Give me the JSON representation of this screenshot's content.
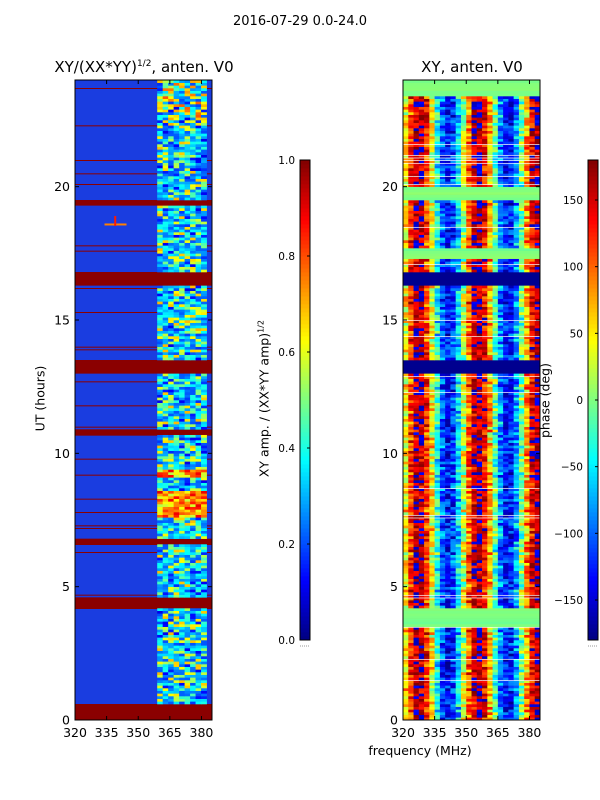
{
  "suptitle": "2016-07-29 0.0-24.0",
  "xlabel": "frequency (MHz)",
  "colors": {
    "band_color": "#8b0000",
    "background_low": "#00008f",
    "panel_left_base": "#1a3de0"
  },
  "chart_data": [
    {
      "type": "heatmap",
      "title_prefix": "XY/(XX*YY)",
      "title_exponent": "1/2",
      "title_suffix": ", anten. V0",
      "ylabel": "UT (hours)",
      "xlim": [
        320,
        385
      ],
      "ylim": [
        0,
        24
      ],
      "xticks": [
        320,
        335,
        350,
        365,
        380
      ],
      "yticks": [
        0,
        5,
        10,
        15,
        20
      ],
      "saturated_bands_hours": [
        [
          0.0,
          0.6
        ],
        [
          4.2,
          4.6
        ],
        [
          6.6,
          6.75
        ],
        [
          10.7,
          10.9
        ],
        [
          12.95,
          13.45
        ],
        [
          16.3,
          16.8
        ],
        [
          19.25,
          19.5
        ]
      ],
      "active_columns_mhz": [
        359,
        382
      ],
      "colorbar": {
        "label_prefix": "XY amp. / (XX*YY amp)",
        "label_exponent": "1/2",
        "range": [
          0.0,
          1.0
        ],
        "ticks": [
          "0.0",
          "0.2",
          "0.4",
          "0.6",
          "0.8",
          "1.0"
        ],
        "colormap": "jet"
      }
    },
    {
      "type": "heatmap",
      "title": "XY, anten. V0",
      "xlim": [
        320,
        385
      ],
      "ylim": [
        0,
        24
      ],
      "xticks": [
        320,
        335,
        350,
        365,
        380
      ],
      "yticks": [
        0,
        5,
        10,
        15,
        20
      ],
      "constant_bands_hours": [
        [
          3.5,
          4.2
        ],
        [
          17.3,
          17.7
        ],
        [
          19.5,
          20.0
        ],
        [
          23.4,
          24.0
        ]
      ],
      "blank_bands_hours": [
        [
          12.95,
          13.45
        ],
        [
          16.3,
          16.8
        ]
      ],
      "colorbar": {
        "label": "phase (deg)",
        "range": [
          -180,
          180
        ],
        "ticks": [
          "150",
          "100",
          "50",
          "0",
          "−50",
          "−100",
          "−150"
        ],
        "tick_values": [
          150,
          100,
          50,
          0,
          -50,
          -100,
          -150
        ],
        "colormap": "jet"
      }
    }
  ]
}
